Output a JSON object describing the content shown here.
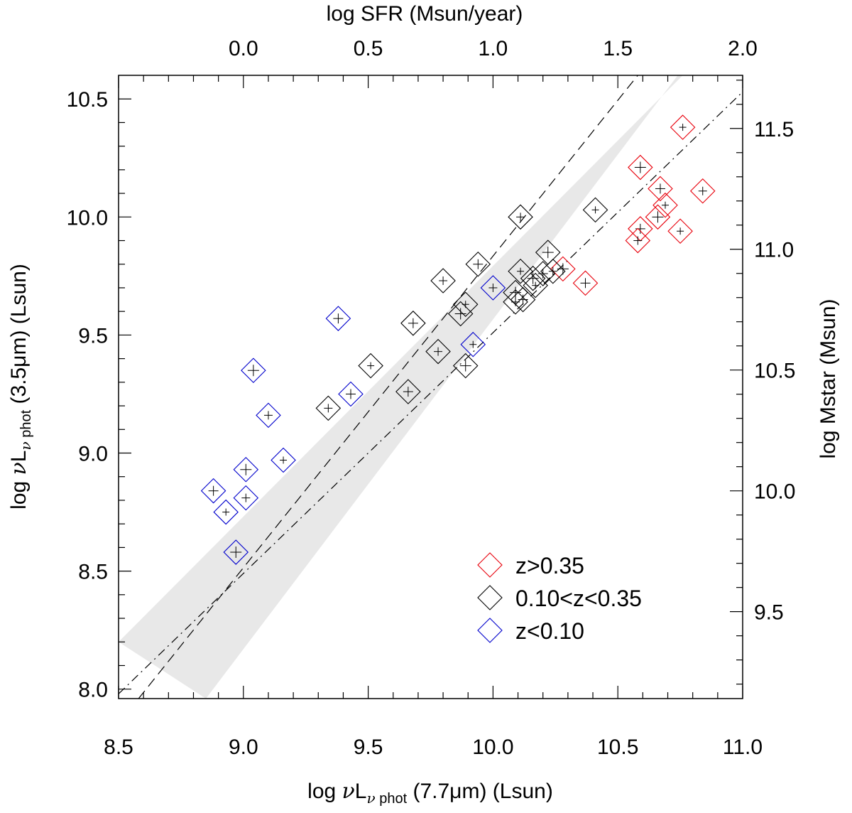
{
  "chart_data": {
    "type": "scatter",
    "xlabel": {
      "pre": "log ",
      "nu": "ν",
      "L": "L",
      "sub_nu": "ν",
      "sub_text": " phot",
      "post": " (7.7μm) (Lsun)"
    },
    "ylabel": {
      "pre": "log ",
      "nu": "ν",
      "L": "L",
      "sub_nu": "ν",
      "sub_text": " phot",
      "post": " (3.5μm) (Lsun)"
    },
    "x2label": "log SFR (Msun/year)",
    "y2label": "log Mstar (Msun)",
    "xlim": [
      8.5,
      11.0
    ],
    "ylim": [
      7.96,
      10.6
    ],
    "x2lim": [
      -0.5,
      2.0
    ],
    "y2lim": [
      9.14,
      11.72
    ],
    "x_ticks": [
      8.5,
      9.0,
      9.5,
      10.0,
      10.5,
      11.0
    ],
    "x_tick_labels": [
      "8.5",
      "9.0",
      "9.5",
      "10.0",
      "10.5",
      "11.0"
    ],
    "y_ticks": [
      8.0,
      8.5,
      9.0,
      9.5,
      10.0,
      10.5
    ],
    "y_tick_labels": [
      "8.0",
      "8.5",
      "9.0",
      "9.5",
      "10.0",
      "10.5"
    ],
    "x2_ticks": [
      0.0,
      0.5,
      1.0,
      1.5,
      2.0
    ],
    "x2_tick_labels": [
      "0.0",
      "0.5",
      "1.0",
      "1.5",
      "2.0"
    ],
    "y2_ticks": [
      9.5,
      10.0,
      10.5,
      11.0,
      11.5
    ],
    "y2_tick_labels": [
      "9.5",
      "10.0",
      "10.5",
      "11.0",
      "11.5"
    ],
    "legend_position": "bottom-right",
    "band": {
      "upper": [
        [
          8.5,
          8.2
        ],
        [
          10.76,
          10.6
        ]
      ],
      "lower": [
        [
          8.85,
          7.96
        ],
        [
          10.74,
          10.6
        ]
      ],
      "color": "#e8e8e8"
    },
    "lines": [
      {
        "style": "dashed",
        "points": [
          [
            8.58,
            7.96
          ],
          [
            10.58,
            10.6
          ]
        ]
      },
      {
        "style": "dash-dot",
        "points": [
          [
            8.5,
            7.98
          ],
          [
            11.0,
            10.53
          ]
        ]
      }
    ],
    "series": [
      {
        "name": "z>0.35",
        "color": "#e8000b",
        "points": [
          [
            10.76,
            10.38
          ],
          [
            10.59,
            10.21
          ],
          [
            10.67,
            10.12
          ],
          [
            10.84,
            10.11
          ],
          [
            10.69,
            10.05
          ],
          [
            10.66,
            10.0
          ],
          [
            10.59,
            9.95
          ],
          [
            10.58,
            9.9
          ],
          [
            10.75,
            9.94
          ],
          [
            10.28,
            9.78
          ],
          [
            10.37,
            9.72
          ]
        ]
      },
      {
        "name": "0.10<z<0.35",
        "color": "#000000",
        "points": [
          [
            10.11,
            10.0
          ],
          [
            10.41,
            10.03
          ],
          [
            10.22,
            9.85
          ],
          [
            9.94,
            9.8
          ],
          [
            9.8,
            9.73
          ],
          [
            10.11,
            9.77
          ],
          [
            10.16,
            9.74
          ],
          [
            10.2,
            9.76
          ],
          [
            10.24,
            9.77
          ],
          [
            10.17,
            9.71
          ],
          [
            10.09,
            9.68
          ],
          [
            10.12,
            9.65
          ],
          [
            10.09,
            9.64
          ],
          [
            9.89,
            9.63
          ],
          [
            9.87,
            9.59
          ],
          [
            9.68,
            9.55
          ],
          [
            9.78,
            9.43
          ],
          [
            9.51,
            9.37
          ],
          [
            9.89,
            9.37
          ],
          [
            9.66,
            9.26
          ],
          [
            9.34,
            9.19
          ]
        ]
      },
      {
        "name": "z<0.10",
        "color": "#0000cc",
        "points": [
          [
            9.38,
            9.57
          ],
          [
            10.0,
            9.7
          ],
          [
            9.92,
            9.46
          ],
          [
            9.04,
            9.35
          ],
          [
            9.43,
            9.25
          ],
          [
            9.1,
            9.16
          ],
          [
            9.16,
            8.97
          ],
          [
            9.01,
            8.93
          ],
          [
            8.88,
            8.84
          ],
          [
            9.01,
            8.81
          ],
          [
            8.93,
            8.75
          ],
          [
            8.97,
            8.58
          ]
        ]
      }
    ]
  }
}
